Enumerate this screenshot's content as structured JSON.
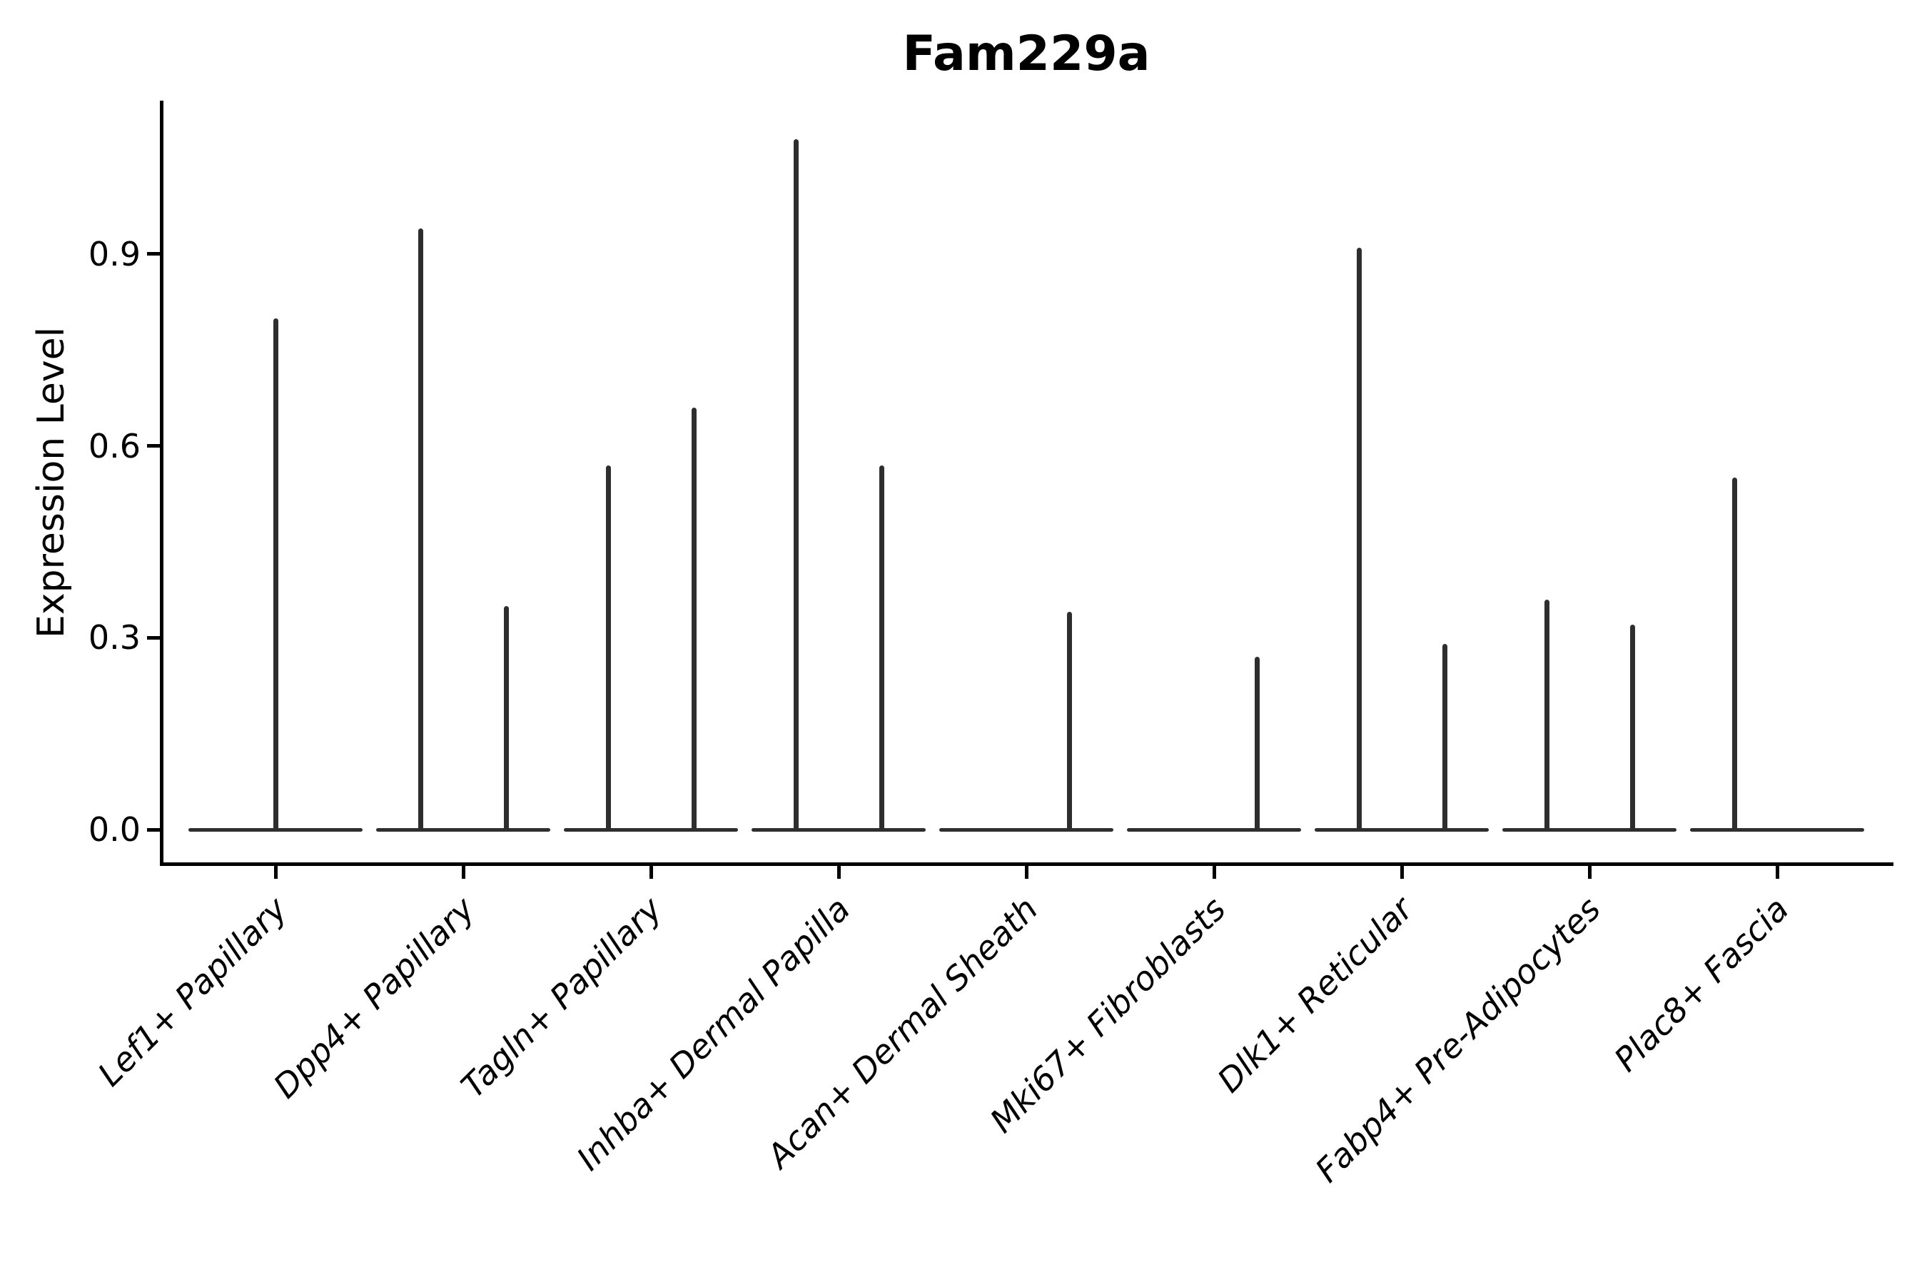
{
  "title": "Fam229a",
  "y_axis": {
    "label": "Expression Level",
    "tick_labels": [
      "0.0",
      "0.3",
      "0.6",
      "0.9"
    ]
  },
  "colors": {
    "violin": "#2e2e2e",
    "axis": "#000000",
    "text": "#000000",
    "background": "#ffffff"
  },
  "chart_data": {
    "type": "violin",
    "title": "Fam229a",
    "xlabel": "",
    "ylabel": "Expression Level",
    "yticks": [
      0.0,
      0.3,
      0.6,
      0.9
    ],
    "ylim": [
      -0.05,
      1.14
    ],
    "grid": false,
    "legend": "none",
    "categories": [
      "Lef1+ Papillary",
      "Dpp4+ Papillary",
      "Tagln+ Papillary",
      "Inhba+ Dermal Papilla",
      "Acan+ Dermal Sheath",
      "Mki67+ Fibroblasts",
      "Dlk1+ Reticular",
      "Fabp4+ Pre-Adipocytes",
      "Plac8+ Fascia"
    ],
    "violins": [
      {
        "category": "Lef1+ Papillary",
        "spikes": [
          {
            "position": "center",
            "max": 0.8
          }
        ]
      },
      {
        "category": "Dpp4+ Papillary",
        "spikes": [
          {
            "position": "left",
            "max": 0.94
          },
          {
            "position": "right",
            "max": 0.35
          }
        ]
      },
      {
        "category": "Tagln+ Papillary",
        "spikes": [
          {
            "position": "left",
            "max": 0.57
          },
          {
            "position": "right",
            "max": 0.66
          }
        ]
      },
      {
        "category": "Inhba+ Dermal Papilla",
        "spikes": [
          {
            "position": "left",
            "max": 1.08
          },
          {
            "position": "right",
            "max": 0.57
          }
        ]
      },
      {
        "category": "Acan+ Dermal Sheath",
        "spikes": [
          {
            "position": "right",
            "max": 0.34
          }
        ]
      },
      {
        "category": "Mki67+ Fibroblasts",
        "spikes": [
          {
            "position": "right",
            "max": 0.27
          }
        ]
      },
      {
        "category": "Dlk1+ Reticular",
        "spikes": [
          {
            "position": "left",
            "max": 0.91
          },
          {
            "position": "right",
            "max": 0.29
          }
        ]
      },
      {
        "category": "Fabp4+ Pre-Adipocytes",
        "spikes": [
          {
            "position": "left",
            "max": 0.36
          },
          {
            "position": "right",
            "max": 0.32
          }
        ]
      },
      {
        "category": "Plac8+ Fascia",
        "spikes": [
          {
            "position": "left",
            "max": 0.55
          }
        ]
      }
    ],
    "description": "Violin plot; each violin is flattened to a wide base at 0 expression with a thin density spike rising to its maximum expression value."
  }
}
